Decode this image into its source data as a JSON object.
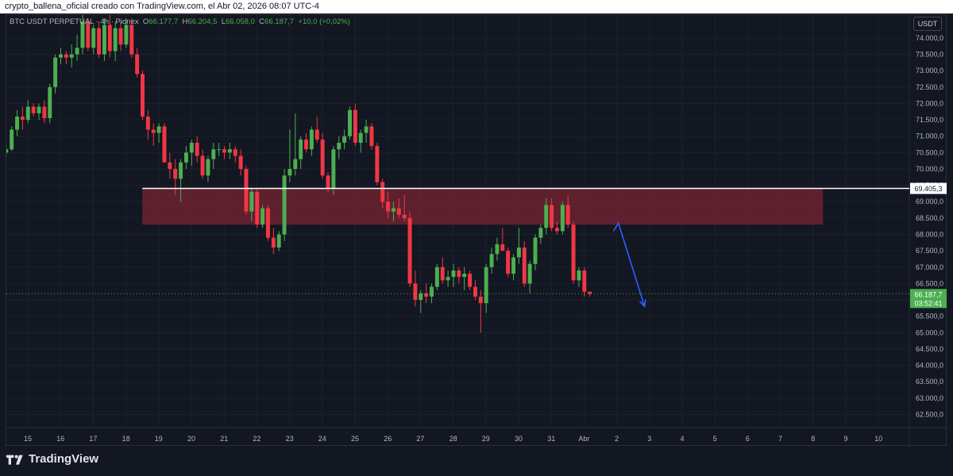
{
  "header": {
    "attribution": "crypto_ballena_oficial creado con TradingView.com, el Abr 02, 2026 08:07 UTC-4"
  },
  "legend": {
    "symbol": "BTC USDT PERPETUAL · 4h · Pionex",
    "open_label": "O",
    "open": "66.177,7",
    "high_label": "H",
    "high": "66.204,5",
    "low_label": "L",
    "low": "66.058,0",
    "close_label": "C",
    "close": "66.187,7",
    "change": "+10,0 (+0,02%)"
  },
  "currency": "USDT",
  "logo": {
    "text": "TradingView"
  },
  "colors": {
    "up": "#26a69a",
    "up_bright": "#4caf50",
    "down": "#f23645",
    "zone": "#7a2432",
    "arrow": "#2962ff",
    "level_line": "#ffffff",
    "price_tag": "#4caf50"
  },
  "chart_data": {
    "type": "candlestick",
    "title": "",
    "xlabel": "",
    "ylabel": "",
    "ylim": [
      62100,
      74700
    ],
    "y_ticks": [
      "62.500,0",
      "63.000,0",
      "63.500,0",
      "64.000,0",
      "64.500,0",
      "65.000,0",
      "65.500,0",
      "66.000,0",
      "66.500,0",
      "67.000,0",
      "67.500,0",
      "68.000,0",
      "68.500,0",
      "69.000,0",
      "69.500,0",
      "70.000,0",
      "70.500,0",
      "71.000,0",
      "71.500,0",
      "72.000,0",
      "72.500,0",
      "73.000,0",
      "73.500,0",
      "74.000,0"
    ],
    "y_tick_values": [
      62500,
      63000,
      63500,
      64000,
      64500,
      65000,
      65500,
      66000,
      66500,
      67000,
      67500,
      68000,
      68500,
      69000,
      69500,
      70000,
      70500,
      71000,
      71500,
      72000,
      72500,
      73000,
      73500,
      74000
    ],
    "x_ticks": [
      "15",
      "16",
      "17",
      "18",
      "19",
      "20",
      "21",
      "22",
      "23",
      "24",
      "25",
      "26",
      "27",
      "28",
      "29",
      "30",
      "31",
      "Abr",
      "2",
      "3",
      "4",
      "5",
      "6",
      "7",
      "8",
      "9",
      "10"
    ],
    "x_tick_days": [
      15,
      16,
      17,
      18,
      19,
      20,
      21,
      22,
      23,
      24,
      25,
      26,
      27,
      28,
      29,
      30,
      31,
      32,
      33,
      34,
      35,
      36,
      37,
      38,
      39,
      40,
      41
    ],
    "candle_interval_days": 0.1667,
    "first_candle_day": 14.34,
    "candles": [
      [
        70500,
        70700,
        70400,
        70600
      ],
      [
        70600,
        71300,
        70550,
        71200
      ],
      [
        71200,
        71800,
        71000,
        71600
      ],
      [
        71600,
        71900,
        71200,
        71500
      ],
      [
        71500,
        72100,
        71400,
        71900
      ],
      [
        71900,
        72000,
        71600,
        71700
      ],
      [
        71700,
        72000,
        71500,
        71900
      ],
      [
        71900,
        72100,
        71400,
        71550
      ],
      [
        71550,
        72600,
        71400,
        72500
      ],
      [
        72500,
        73500,
        72300,
        73400
      ],
      [
        73400,
        73700,
        73200,
        73500
      ],
      [
        73500,
        73600,
        73200,
        73400
      ],
      [
        73400,
        73800,
        73100,
        73500
      ],
      [
        73500,
        74100,
        73300,
        73700
      ],
      [
        73700,
        74700,
        73500,
        74500
      ],
      [
        74500,
        74600,
        73600,
        73700
      ],
      [
        73700,
        74400,
        73500,
        74300
      ],
      [
        74300,
        74500,
        73400,
        73500
      ],
      [
        73500,
        74600,
        73300,
        74400
      ],
      [
        74400,
        74700,
        73400,
        73600
      ],
      [
        73600,
        74500,
        73300,
        74300
      ],
      [
        74300,
        74500,
        73600,
        73800
      ],
      [
        73800,
        74600,
        73700,
        74400
      ],
      [
        74400,
        74600,
        73400,
        73500
      ],
      [
        73500,
        73700,
        72800,
        72900
      ],
      [
        72900,
        73000,
        71500,
        71600
      ],
      [
        71600,
        71800,
        70900,
        71200
      ],
      [
        71200,
        71400,
        70700,
        71100
      ],
      [
        71100,
        71400,
        70800,
        71300
      ],
      [
        71300,
        71400,
        70200,
        70200
      ],
      [
        70200,
        70500,
        69700,
        70000
      ],
      [
        70000,
        70300,
        69200,
        69700
      ],
      [
        69700,
        70300,
        69000,
        70200
      ],
      [
        70200,
        70700,
        70000,
        70500
      ],
      [
        70500,
        70900,
        70100,
        70800
      ],
      [
        70800,
        71000,
        70200,
        70400
      ],
      [
        70400,
        70600,
        69700,
        69800
      ],
      [
        69800,
        70400,
        69600,
        70300
      ],
      [
        70300,
        70800,
        70000,
        70600
      ],
      [
        70600,
        70800,
        70400,
        70600
      ],
      [
        70600,
        70700,
        70300,
        70500
      ],
      [
        70500,
        70800,
        70300,
        70600
      ],
      [
        70600,
        70700,
        70200,
        70400
      ],
      [
        70400,
        70600,
        69800,
        70000
      ],
      [
        70000,
        70100,
        68600,
        68700
      ],
      [
        68700,
        69400,
        68400,
        69300
      ],
      [
        69300,
        69400,
        68200,
        68300
      ],
      [
        68300,
        68900,
        68200,
        68800
      ],
      [
        68800,
        68900,
        67800,
        67900
      ],
      [
        67900,
        68200,
        67400,
        67600
      ],
      [
        67600,
        68100,
        67500,
        68000
      ],
      [
        68000,
        70000,
        67800,
        69800
      ],
      [
        69800,
        71200,
        69600,
        70000
      ],
      [
        70000,
        71700,
        69800,
        70300
      ],
      [
        70300,
        71000,
        70000,
        70900
      ],
      [
        70900,
        71100,
        70500,
        70600
      ],
      [
        70600,
        71300,
        70400,
        71200
      ],
      [
        71200,
        71600,
        70800,
        70900
      ],
      [
        70900,
        71100,
        69700,
        69800
      ],
      [
        69800,
        69900,
        69300,
        69400
      ],
      [
        69400,
        70700,
        69200,
        70600
      ],
      [
        70600,
        71000,
        70300,
        70800
      ],
      [
        70800,
        71200,
        70600,
        71000
      ],
      [
        71000,
        71900,
        70900,
        71800
      ],
      [
        71800,
        72000,
        70700,
        70800
      ],
      [
        70800,
        71200,
        70500,
        71100
      ],
      [
        71100,
        71500,
        70800,
        71300
      ],
      [
        71300,
        71400,
        70600,
        70700
      ],
      [
        70700,
        70800,
        69500,
        69600
      ],
      [
        69600,
        69700,
        68800,
        69000
      ],
      [
        69000,
        69300,
        68500,
        68700
      ],
      [
        68700,
        69000,
        68400,
        68800
      ],
      [
        68800,
        69100,
        68500,
        68600
      ],
      [
        68600,
        69200,
        68400,
        68500
      ],
      [
        68500,
        68700,
        66400,
        66500
      ],
      [
        66500,
        66900,
        65800,
        66000
      ],
      [
        66000,
        66300,
        65600,
        66200
      ],
      [
        66200,
        66500,
        65900,
        66100
      ],
      [
        66100,
        66500,
        65900,
        66400
      ],
      [
        66400,
        67100,
        66300,
        67000
      ],
      [
        67000,
        67300,
        66500,
        66600
      ],
      [
        66600,
        66900,
        66400,
        66700
      ],
      [
        66700,
        67100,
        66400,
        66900
      ],
      [
        66900,
        67000,
        66500,
        66700
      ],
      [
        66700,
        67000,
        66300,
        66800
      ],
      [
        66800,
        66900,
        66300,
        66400
      ],
      [
        66400,
        66600,
        66000,
        66100
      ],
      [
        66100,
        66300,
        65000,
        65900
      ],
      [
        65900,
        67100,
        65600,
        67000
      ],
      [
        67000,
        67600,
        66800,
        67400
      ],
      [
        67400,
        67900,
        67200,
        67700
      ],
      [
        67700,
        68200,
        67500,
        67500
      ],
      [
        67500,
        67600,
        66700,
        66800
      ],
      [
        66800,
        67400,
        66600,
        67300
      ],
      [
        67300,
        68200,
        67100,
        67600
      ],
      [
        67600,
        67800,
        66400,
        66500
      ],
      [
        66500,
        67200,
        66200,
        67100
      ],
      [
        67100,
        68000,
        66900,
        67900
      ],
      [
        67900,
        68300,
        67700,
        68200
      ],
      [
        68200,
        69100,
        68000,
        68900
      ],
      [
        68900,
        69100,
        68100,
        68200
      ],
      [
        68200,
        68400,
        68000,
        68100
      ],
      [
        68100,
        69000,
        68000,
        68900
      ],
      [
        68900,
        69200,
        68200,
        68300
      ],
      [
        68300,
        68400,
        66500,
        66600
      ],
      [
        66600,
        67000,
        66400,
        66900
      ],
      [
        66900,
        67000,
        66100,
        66250
      ],
      [
        66250,
        66250,
        66100,
        66190
      ]
    ],
    "zone": {
      "x_start_day": 18.5,
      "x_end_day": 39.3,
      "y_low": 68300,
      "y_high": 69405
    },
    "level": {
      "value": 69405.3,
      "label": "69.405,3",
      "x_start_day": 18.5
    },
    "last_price": {
      "value": 66187.7,
      "label": "66.187,7",
      "countdown": "03:52:41"
    },
    "projection": {
      "points": [
        [
          32.9,
          68100
        ],
        [
          33.05,
          68350
        ],
        [
          33.85,
          65800
        ]
      ]
    }
  }
}
